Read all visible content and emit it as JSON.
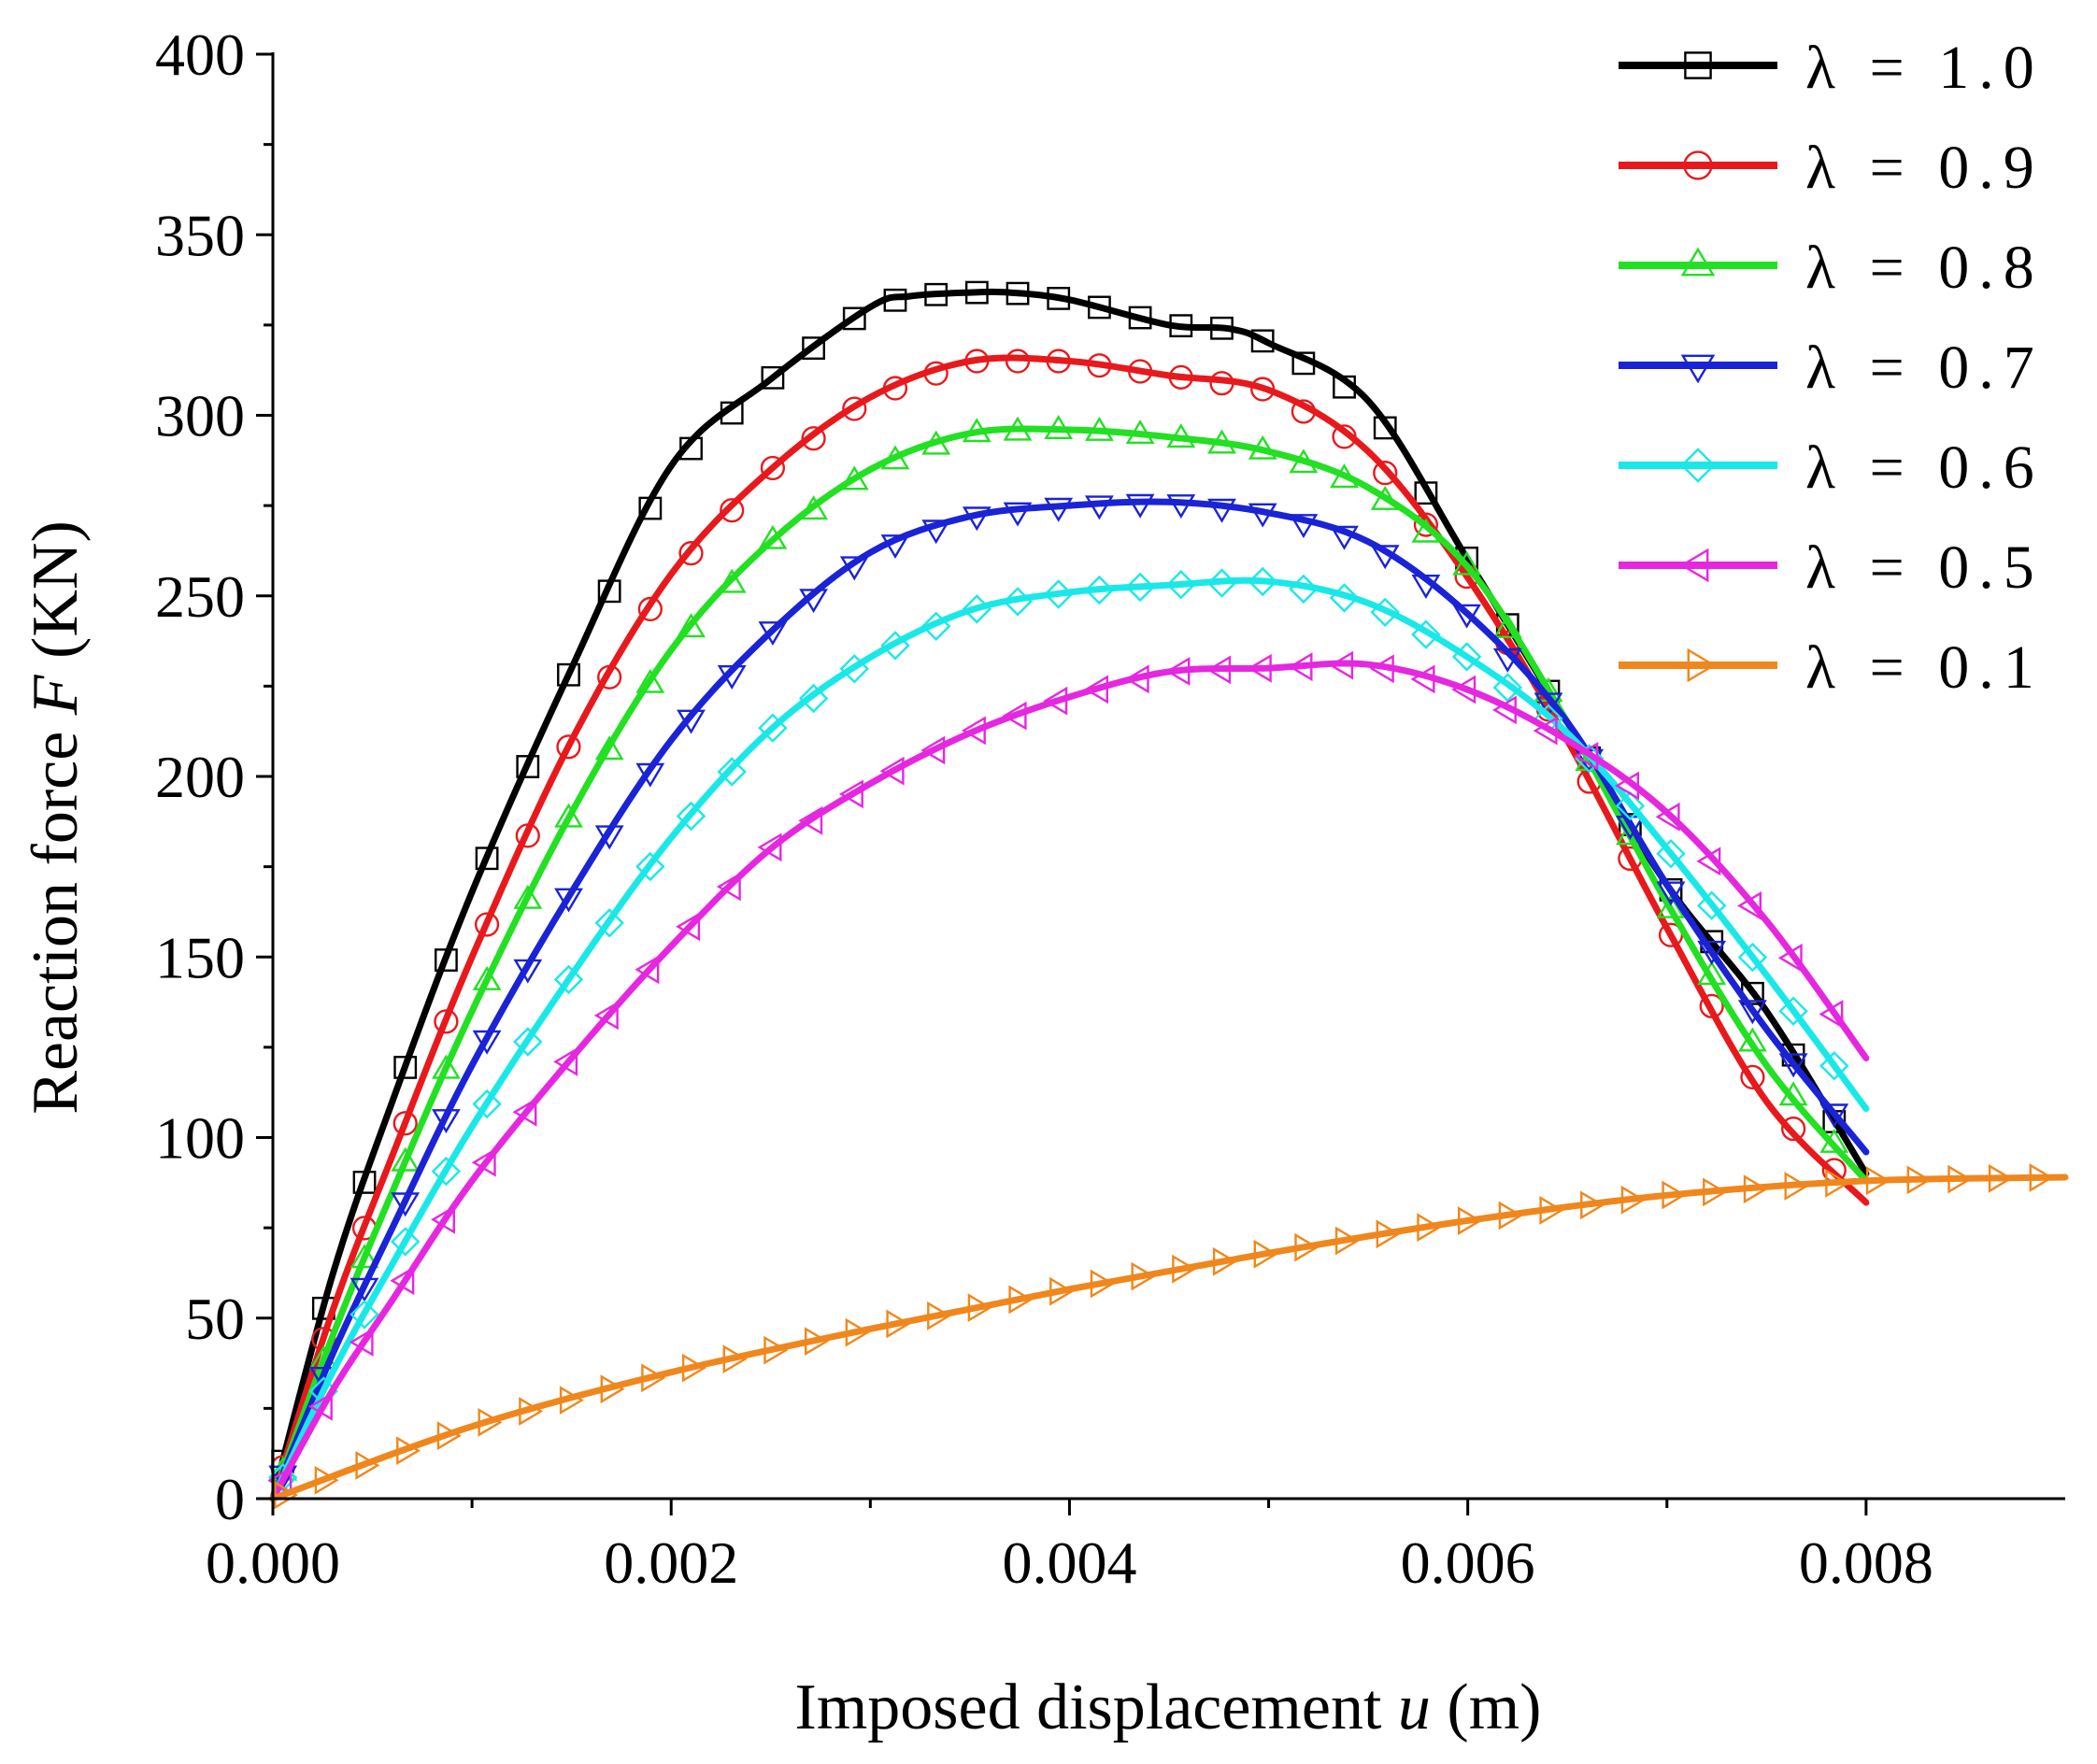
{
  "chart_data": {
    "type": "line",
    "title": "",
    "xlabel": "Imposed displacement u (m)",
    "xlabel_parts": {
      "prefix": "Imposed displacement ",
      "var": "u",
      "suffix": " (m)"
    },
    "ylabel": "Reaction force F (KN)",
    "ylabel_parts": {
      "prefix": "Reaction force ",
      "var": "F",
      "suffix": " (KN)"
    },
    "xlim": [
      0,
      0.009
    ],
    "ylim": [
      0,
      400
    ],
    "xticks": [
      0,
      0.002,
      0.004,
      0.006,
      0.008
    ],
    "xtick_labels": [
      "0.000",
      "0.002",
      "0.004",
      "0.006",
      "0.008"
    ],
    "yticks": [
      0,
      50,
      100,
      150,
      200,
      250,
      300,
      350,
      400
    ],
    "ytick_labels": [
      "0",
      "50",
      "100",
      "150",
      "200",
      "250",
      "300",
      "350",
      "400"
    ],
    "grid": false,
    "legend_position": "top-right",
    "series": [
      {
        "name": "λ = 1.0",
        "color": "#000000",
        "marker": "square",
        "x": [
          0,
          0.0003,
          0.0006,
          0.001,
          0.0015,
          0.002,
          0.0025,
          0.003,
          0.0032,
          0.0035,
          0.0037,
          0.004,
          0.0045,
          0.0048,
          0.005,
          0.0055,
          0.006,
          0.0065,
          0.007,
          0.0075,
          0.008
        ],
        "values": [
          0,
          62,
          110,
          168,
          230,
          286,
          310,
          330,
          333,
          334,
          334,
          332,
          325,
          324,
          320,
          304,
          260,
          215,
          170,
          135,
          90
        ]
      },
      {
        "name": "λ = 0.9",
        "color": "#e8191c",
        "marker": "circle",
        "x": [
          0,
          0.0003,
          0.0006,
          0.001,
          0.0015,
          0.002,
          0.0025,
          0.003,
          0.0035,
          0.004,
          0.0045,
          0.005,
          0.0055,
          0.006,
          0.0065,
          0.007,
          0.0075,
          0.008
        ],
        "values": [
          0,
          52,
          95,
          150,
          210,
          256,
          285,
          305,
          315,
          315,
          311,
          307,
          290,
          255,
          210,
          158,
          110,
          82
        ]
      },
      {
        "name": "λ = 0.8",
        "color": "#22e022",
        "marker": "triangle-up",
        "x": [
          0,
          0.0003,
          0.0006,
          0.001,
          0.0015,
          0.002,
          0.0025,
          0.003,
          0.0035,
          0.004,
          0.0045,
          0.005,
          0.0055,
          0.006,
          0.0065,
          0.007,
          0.0075,
          0.008
        ],
        "values": [
          0,
          45,
          85,
          135,
          190,
          235,
          265,
          285,
          295,
          296,
          294,
          290,
          280,
          258,
          215,
          165,
          120,
          88
        ]
      },
      {
        "name": "λ = 0.7",
        "color": "#1a23d6",
        "marker": "triangle-down",
        "x": [
          0,
          0.0003,
          0.0006,
          0.001,
          0.0015,
          0.002,
          0.0025,
          0.003,
          0.0035,
          0.004,
          0.0045,
          0.005,
          0.0055,
          0.006,
          0.0065,
          0.007,
          0.0075,
          0.008
        ],
        "values": [
          0,
          40,
          75,
          120,
          168,
          210,
          240,
          262,
          272,
          275,
          276,
          273,
          265,
          245,
          215,
          170,
          130,
          96
        ]
      },
      {
        "name": "λ = 0.6",
        "color": "#1ae8e8",
        "marker": "diamond",
        "x": [
          0,
          0.0003,
          0.0006,
          0.001,
          0.0015,
          0.002,
          0.0025,
          0.003,
          0.0035,
          0.004,
          0.0045,
          0.005,
          0.0055,
          0.006,
          0.0065,
          0.007,
          0.0075,
          0.008
        ],
        "values": [
          0,
          35,
          65,
          103,
          145,
          183,
          213,
          233,
          246,
          251,
          253,
          254,
          248,
          233,
          212,
          180,
          145,
          108
        ]
      },
      {
        "name": "λ = 0.5",
        "color": "#e627e0",
        "marker": "triangle-left",
        "x": [
          0,
          0.0003,
          0.0006,
          0.001,
          0.0015,
          0.002,
          0.0025,
          0.003,
          0.0035,
          0.004,
          0.0045,
          0.005,
          0.0055,
          0.006,
          0.0065,
          0.007,
          0.0075,
          0.008
        ],
        "values": [
          0,
          30,
          55,
          88,
          122,
          153,
          180,
          198,
          212,
          222,
          229,
          230,
          231,
          224,
          210,
          190,
          160,
          122
        ]
      },
      {
        "name": "λ = 0.1",
        "color": "#f0871c",
        "marker": "triangle-right",
        "x": [
          0,
          0.001,
          0.002,
          0.003,
          0.004,
          0.005,
          0.006,
          0.007,
          0.008,
          0.009
        ],
        "values": [
          0,
          20,
          35,
          47,
          58,
          68,
          77,
          84,
          88,
          89
        ]
      }
    ]
  }
}
